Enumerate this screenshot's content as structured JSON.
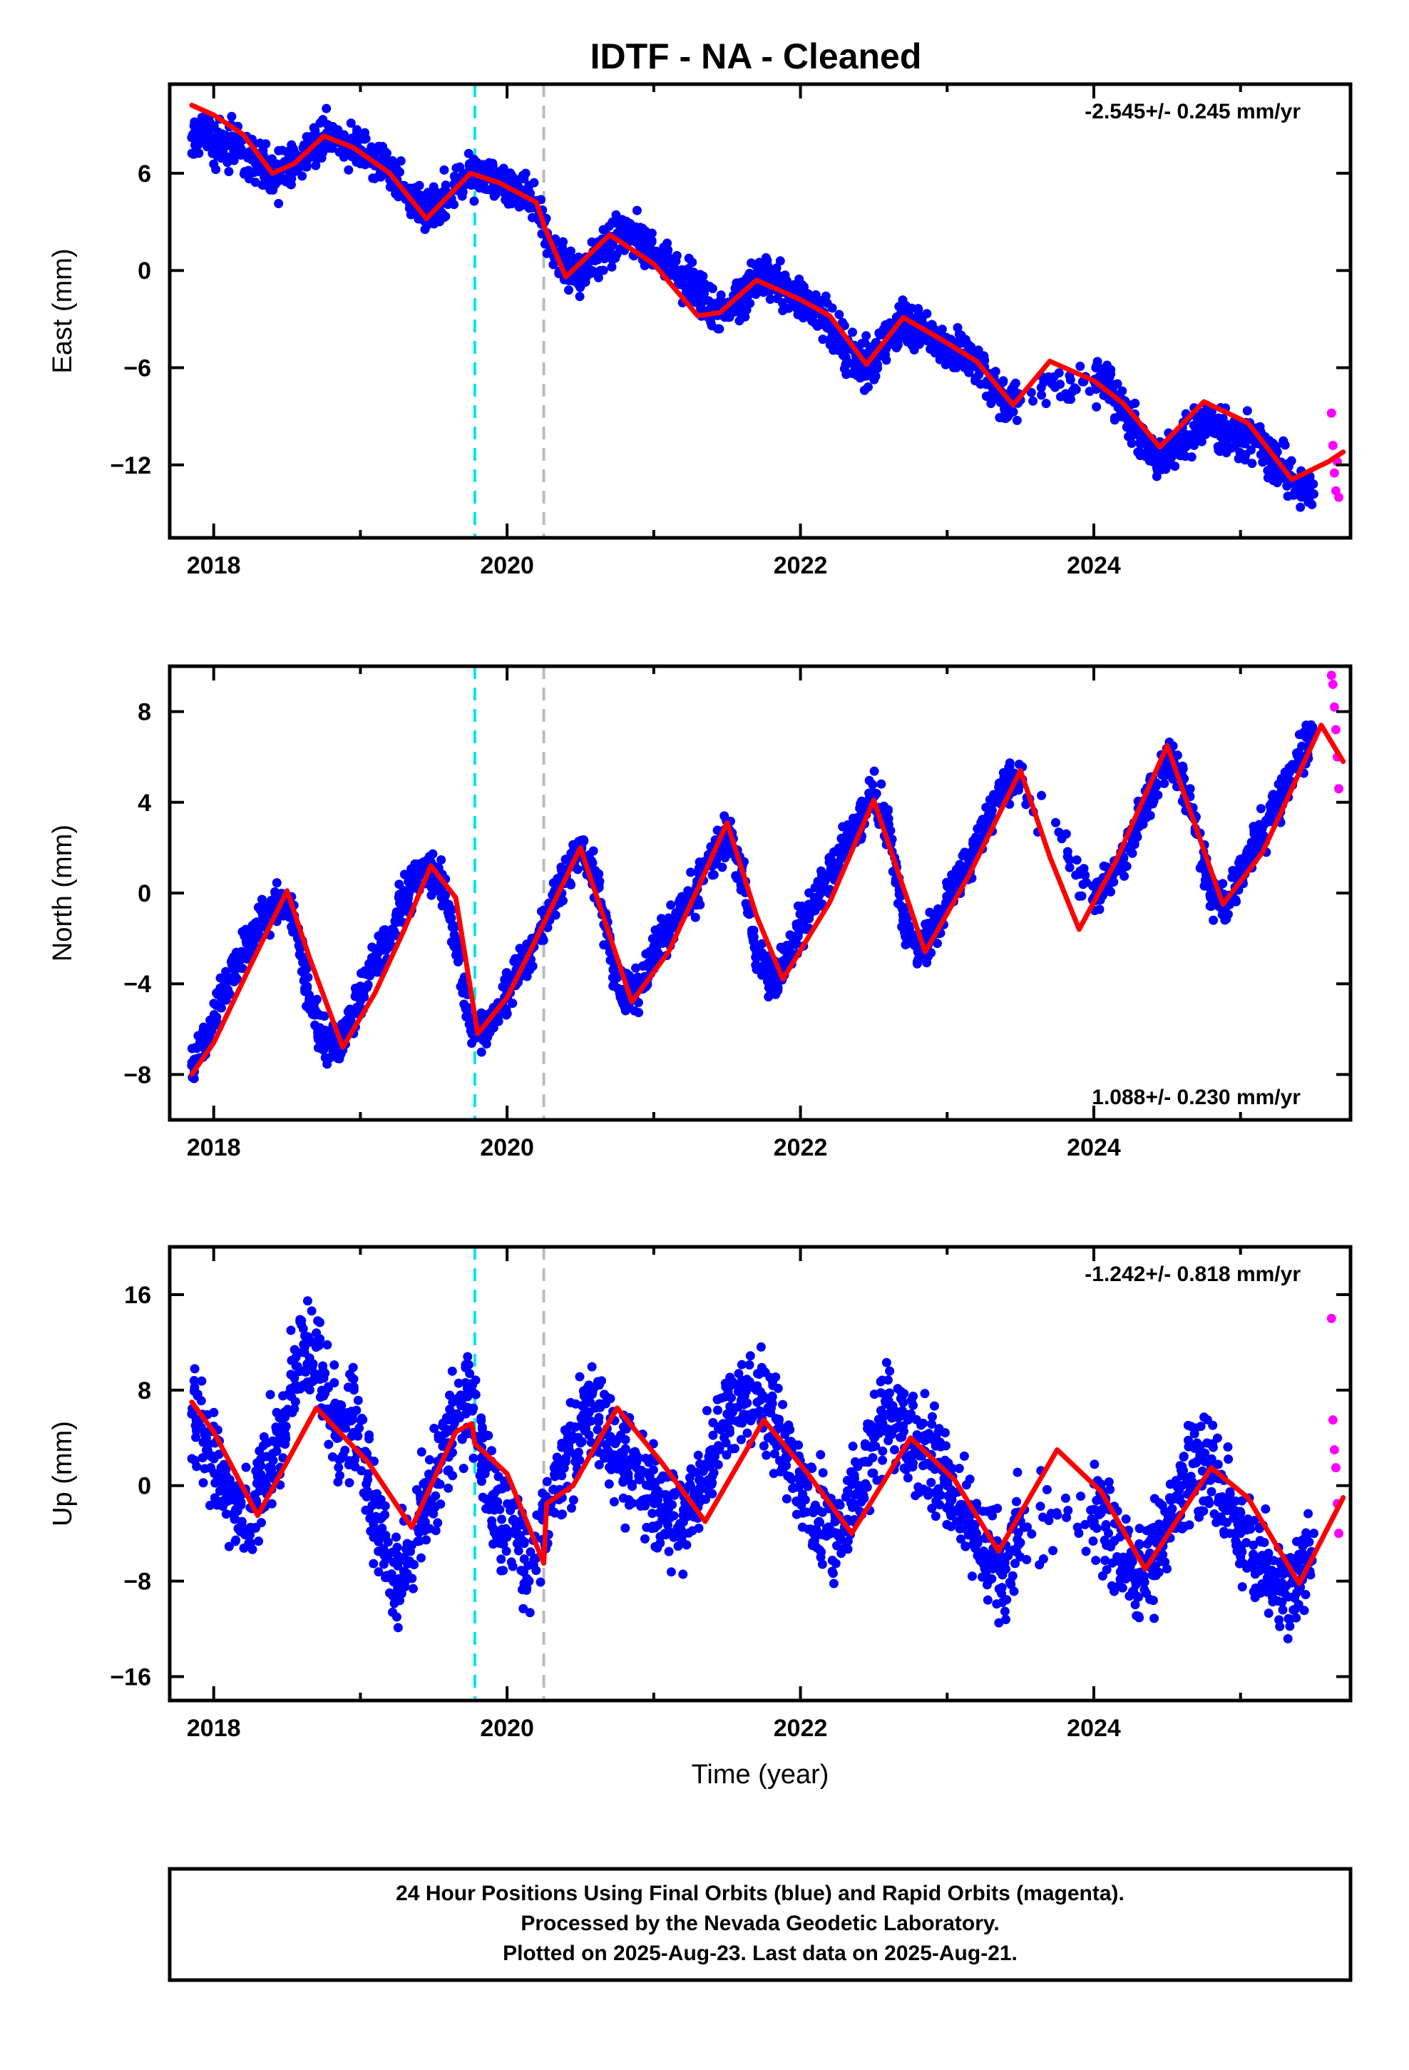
{
  "title": "IDTF  - NA - Cleaned",
  "chart_data": [
    {
      "type": "scatter",
      "panel": "east",
      "ylabel": "East (mm)",
      "xlabel": "",
      "xlim": [
        2017.7,
        2025.75
      ],
      "ylim": [
        -16.5,
        11.5
      ],
      "xticks": [
        2018,
        2020,
        2022,
        2024
      ],
      "yticks": [
        -12,
        -6,
        0,
        6
      ],
      "rate_label": "-2.545+/- 0.245 mm/yr",
      "rate_position": "top-right",
      "vlines": [
        {
          "x": 2019.78,
          "color": "#00e5ee",
          "style": "dashed"
        },
        {
          "x": 2020.25,
          "color": "#bbbbbb",
          "style": "dashed"
        }
      ],
      "series": [
        {
          "kind": "scatter",
          "color": "#0000ff",
          "x": [
            2017.85,
            2017.95,
            2018.05,
            2018.15,
            2018.25,
            2018.35,
            2018.45,
            2018.55,
            2018.65,
            2018.75,
            2018.85,
            2018.95,
            2019.05,
            2019.15,
            2019.25,
            2019.35,
            2019.45,
            2019.55,
            2019.65,
            2019.75,
            2019.85,
            2019.95,
            2020.05,
            2020.15,
            2020.3,
            2020.4,
            2020.5,
            2020.6,
            2020.7,
            2020.8,
            2020.9,
            2021.0,
            2021.1,
            2021.2,
            2021.3,
            2021.4,
            2021.5,
            2021.6,
            2021.7,
            2021.8,
            2021.9,
            2022.0,
            2022.1,
            2022.2,
            2022.3,
            2022.4,
            2022.5,
            2022.6,
            2022.7,
            2022.8,
            2022.9,
            2023.0,
            2023.1,
            2023.2,
            2023.3,
            2023.4,
            2023.5,
            2024.0,
            2024.1,
            2024.2,
            2024.3,
            2024.4,
            2024.5,
            2024.6,
            2024.7,
            2024.8,
            2024.9,
            2025.0,
            2025.1,
            2025.2,
            2025.3,
            2025.4,
            2025.5
          ],
          "y": [
            8.2,
            8.4,
            7.6,
            7.8,
            7.0,
            6.2,
            5.8,
            6.5,
            7.6,
            8.3,
            8.0,
            7.4,
            7.0,
            6.6,
            5.6,
            4.4,
            3.6,
            4.2,
            5.2,
            5.9,
            6.2,
            5.6,
            5.0,
            4.6,
            1.6,
            0.2,
            -0.4,
            0.6,
            1.8,
            2.4,
            2.0,
            1.2,
            0.6,
            -0.4,
            -1.4,
            -2.6,
            -2.8,
            -1.6,
            -0.6,
            -0.6,
            -1.2,
            -1.8,
            -2.4,
            -3.4,
            -4.6,
            -5.8,
            -5.6,
            -4.2,
            -3.4,
            -3.6,
            -4.0,
            -4.8,
            -5.2,
            -5.6,
            -7.0,
            -8.4,
            -8.0,
            -6.8,
            -7.2,
            -8.6,
            -10.0,
            -11.2,
            -11.6,
            -10.8,
            -9.8,
            -9.4,
            -9.8,
            -10.2,
            -10.6,
            -11.4,
            -12.4,
            -13.4,
            -13.8
          ]
        },
        {
          "kind": "scatter",
          "color": "#ff00ff",
          "x": [
            2025.62,
            2025.63,
            2025.64,
            2025.65,
            2025.66,
            2025.67
          ],
          "y": [
            -8.8,
            -10.8,
            -12.5,
            -13.6,
            -11.8,
            -14.0
          ]
        },
        {
          "kind": "line",
          "color": "#ff0000",
          "x": [
            2017.85,
            2018.0,
            2018.2,
            2018.4,
            2018.55,
            2018.75,
            2018.95,
            2019.2,
            2019.45,
            2019.75,
            2019.95,
            2020.2,
            2020.25,
            2020.4,
            2020.7,
            2021.0,
            2021.3,
            2021.45,
            2021.7,
            2022.0,
            2022.2,
            2022.45,
            2022.7,
            2022.95,
            2023.2,
            2023.45,
            2023.7,
            2024.0,
            2024.2,
            2024.45,
            2024.75,
            2025.05,
            2025.35,
            2025.6,
            2025.7
          ],
          "y": [
            10.2,
            9.6,
            8.4,
            6.0,
            6.6,
            8.3,
            7.6,
            6.0,
            3.2,
            6.0,
            5.4,
            4.2,
            2.8,
            -0.4,
            2.2,
            0.4,
            -2.8,
            -2.6,
            -0.6,
            -1.8,
            -2.8,
            -5.8,
            -2.9,
            -4.2,
            -5.6,
            -8.3,
            -5.6,
            -6.8,
            -8.2,
            -10.9,
            -8.1,
            -9.4,
            -12.9,
            -11.8,
            -11.2
          ]
        }
      ]
    },
    {
      "type": "scatter",
      "panel": "north",
      "ylabel": "North (mm)",
      "xlabel": "",
      "xlim": [
        2017.7,
        2025.75
      ],
      "ylim": [
        -10,
        10
      ],
      "xticks": [
        2018,
        2020,
        2022,
        2024
      ],
      "yticks": [
        -8,
        -4,
        0,
        4,
        8
      ],
      "rate_label": "1.088+/- 0.230 mm/yr",
      "rate_position": "bottom-right",
      "vlines": [
        {
          "x": 2019.78,
          "color": "#00e5ee",
          "style": "dashed"
        },
        {
          "x": 2020.25,
          "color": "#bbbbbb",
          "style": "dashed"
        }
      ],
      "series": [
        {
          "kind": "scatter",
          "color": "#0000ff",
          "x": [
            2017.85,
            2017.95,
            2018.05,
            2018.15,
            2018.25,
            2018.35,
            2018.45,
            2018.55,
            2018.65,
            2018.75,
            2018.85,
            2018.95,
            2019.05,
            2019.15,
            2019.25,
            2019.35,
            2019.45,
            2019.55,
            2019.65,
            2019.75,
            2019.85,
            2019.95,
            2020.05,
            2020.15,
            2020.3,
            2020.4,
            2020.5,
            2020.6,
            2020.7,
            2020.8,
            2020.9,
            2021.0,
            2021.1,
            2021.2,
            2021.3,
            2021.4,
            2021.5,
            2021.6,
            2021.7,
            2021.8,
            2021.9,
            2022.0,
            2022.1,
            2022.2,
            2022.3,
            2022.4,
            2022.5,
            2022.6,
            2022.7,
            2022.8,
            2022.9,
            2023.0,
            2023.1,
            2023.2,
            2023.3,
            2023.4,
            2023.5,
            2024.0,
            2024.1,
            2024.2,
            2024.3,
            2024.4,
            2024.5,
            2024.6,
            2024.7,
            2024.8,
            2024.9,
            2025.0,
            2025.1,
            2025.2,
            2025.3,
            2025.4,
            2025.5
          ],
          "y": [
            -7.6,
            -6.4,
            -4.6,
            -3.2,
            -2.2,
            -1.2,
            -0.4,
            -1.0,
            -4.8,
            -6.6,
            -6.8,
            -5.2,
            -3.6,
            -2.4,
            -1.0,
            0.2,
            1.0,
            0.4,
            -2.0,
            -5.8,
            -6.2,
            -5.0,
            -3.6,
            -2.6,
            -0.6,
            0.8,
            2.2,
            0.8,
            -2.6,
            -4.6,
            -4.2,
            -2.6,
            -1.6,
            -0.8,
            0.4,
            1.6,
            2.8,
            1.0,
            -2.6,
            -3.8,
            -3.0,
            -1.4,
            -0.2,
            0.8,
            2.0,
            3.2,
            4.4,
            2.8,
            -1.2,
            -2.6,
            -1.8,
            -0.2,
            0.8,
            2.2,
            3.4,
            4.8,
            5.0,
            -0.2,
            0.6,
            1.6,
            3.0,
            4.6,
            6.0,
            5.2,
            2.6,
            -0.2,
            -0.6,
            1.0,
            2.2,
            3.2,
            4.6,
            6.0,
            7.0
          ]
        },
        {
          "kind": "scatter",
          "color": "#ff00ff",
          "x": [
            2025.62,
            2025.63,
            2025.64,
            2025.65,
            2025.66,
            2025.67
          ],
          "y": [
            9.6,
            9.2,
            8.2,
            7.2,
            6.0,
            4.6
          ]
        },
        {
          "kind": "line",
          "color": "#ff0000",
          "x": [
            2017.85,
            2018.0,
            2018.25,
            2018.5,
            2018.65,
            2018.88,
            2019.1,
            2019.3,
            2019.48,
            2019.65,
            2019.8,
            2020.0,
            2020.2,
            2020.5,
            2020.85,
            2021.1,
            2021.3,
            2021.5,
            2021.7,
            2021.88,
            2022.2,
            2022.5,
            2022.85,
            2023.15,
            2023.5,
            2023.7,
            2023.9,
            2024.15,
            2024.5,
            2024.88,
            2025.15,
            2025.55,
            2025.7
          ],
          "y": [
            -8.0,
            -6.6,
            -3.2,
            0.1,
            -2.8,
            -6.8,
            -4.4,
            -1.6,
            1.2,
            -0.2,
            -6.2,
            -4.6,
            -2.0,
            2.0,
            -4.8,
            -2.6,
            0.2,
            3.1,
            -1.0,
            -3.8,
            -0.4,
            4.1,
            -2.6,
            0.8,
            5.4,
            1.6,
            -1.6,
            1.4,
            6.5,
            -0.5,
            1.8,
            7.4,
            5.8
          ]
        }
      ]
    },
    {
      "type": "scatter",
      "panel": "up",
      "ylabel": "Up (mm)",
      "xlabel": "Time (year)",
      "xlim": [
        2017.7,
        2025.75
      ],
      "ylim": [
        -18,
        20
      ],
      "xticks": [
        2018,
        2020,
        2022,
        2024
      ],
      "yticks": [
        -16,
        -8,
        0,
        8,
        16
      ],
      "rate_label": "-1.242+/- 0.818 mm/yr",
      "rate_position": "top-right",
      "vlines": [
        {
          "x": 2019.78,
          "color": "#00e5ee",
          "style": "dashed"
        },
        {
          "x": 2020.25,
          "color": "#bbbbbb",
          "style": "dashed"
        }
      ],
      "series": [
        {
          "kind": "scatter",
          "color": "#0000ff",
          "x": [
            2017.85,
            2017.95,
            2018.05,
            2018.15,
            2018.25,
            2018.35,
            2018.45,
            2018.55,
            2018.65,
            2018.75,
            2018.85,
            2018.95,
            2019.05,
            2019.15,
            2019.25,
            2019.35,
            2019.45,
            2019.55,
            2019.65,
            2019.75,
            2019.85,
            2019.95,
            2020.05,
            2020.15,
            2020.3,
            2020.4,
            2020.5,
            2020.6,
            2020.7,
            2020.8,
            2020.9,
            2021.0,
            2021.1,
            2021.2,
            2021.3,
            2021.4,
            2021.5,
            2021.6,
            2021.7,
            2021.8,
            2021.9,
            2022.0,
            2022.1,
            2022.2,
            2022.3,
            2022.4,
            2022.5,
            2022.6,
            2022.7,
            2022.8,
            2022.9,
            2023.0,
            2023.1,
            2023.2,
            2023.3,
            2023.4,
            2023.5,
            2024.0,
            2024.1,
            2024.2,
            2024.3,
            2024.4,
            2024.5,
            2024.6,
            2024.7,
            2024.8,
            2024.9,
            2025.0,
            2025.1,
            2025.2,
            2025.3,
            2025.4,
            2025.5
          ],
          "y": [
            6.0,
            4.0,
            1.5,
            -2.0,
            -3.5,
            0.5,
            4.0,
            9.0,
            12.0,
            9.0,
            4.0,
            6.0,
            0.5,
            -4.0,
            -9.0,
            -5.0,
            -2.0,
            2.0,
            6.0,
            8.0,
            1.0,
            -2.0,
            -4.0,
            -8.0,
            -1.5,
            2.0,
            5.0,
            6.5,
            4.0,
            2.0,
            0.5,
            -1.0,
            -2.0,
            -2.5,
            -1.0,
            3.0,
            6.0,
            7.0,
            8.0,
            6.5,
            3.0,
            0.5,
            -2.0,
            -4.0,
            -3.0,
            0.0,
            4.0,
            6.0,
            5.0,
            3.0,
            2.0,
            0.0,
            -2.0,
            -4.0,
            -6.0,
            -7.0,
            -3.0,
            -2.0,
            -4.0,
            -6.0,
            -8.0,
            -6.0,
            -3.0,
            0.0,
            2.0,
            1.5,
            -2.0,
            -4.0,
            -6.0,
            -7.5,
            -9.0,
            -7.0,
            -4.0
          ]
        },
        {
          "kind": "scatter",
          "color": "#ff00ff",
          "x": [
            2025.62,
            2025.63,
            2025.64,
            2025.65,
            2025.66,
            2025.67
          ],
          "y": [
            14.0,
            5.5,
            3.0,
            1.5,
            -1.5,
            -4.0
          ]
        },
        {
          "kind": "line",
          "color": "#ff0000",
          "x": [
            2017.85,
            2018.0,
            2018.3,
            2018.7,
            2019.05,
            2019.35,
            2019.65,
            2019.76,
            2019.78,
            2020.0,
            2020.25,
            2020.27,
            2020.45,
            2020.75,
            2021.05,
            2021.35,
            2021.75,
            2022.05,
            2022.35,
            2022.75,
            2023.05,
            2023.35,
            2023.75,
            2024.05,
            2024.35,
            2024.8,
            2025.05,
            2025.4,
            2025.7
          ],
          "y": [
            7.0,
            4.5,
            -2.5,
            6.5,
            2.0,
            -3.5,
            4.5,
            5.2,
            3.5,
            1.0,
            -6.5,
            -1.5,
            0.0,
            6.5,
            2.0,
            -3.0,
            5.5,
            1.0,
            -4.0,
            4.0,
            0.5,
            -5.5,
            3.0,
            -0.5,
            -7.0,
            1.5,
            -1.0,
            -8.2,
            -1.0
          ]
        }
      ]
    }
  ],
  "footer": {
    "line1": "24 Hour Positions Using Final Orbits (blue) and Rapid Orbits (magenta).",
    "line2": "Processed by the Nevada Geodetic Laboratory.",
    "line3": "Plotted on 2025-Aug-23. Last data on 2025-Aug-21."
  }
}
